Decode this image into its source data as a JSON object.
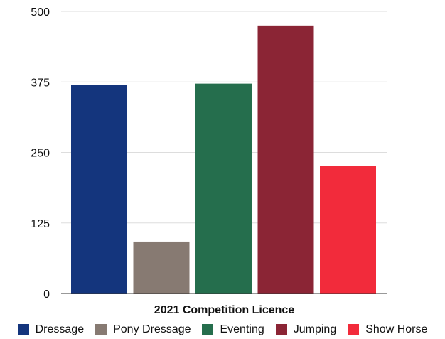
{
  "chart_data": {
    "type": "bar",
    "title": "",
    "xlabel": "2021 Competition Licence",
    "ylabel": "",
    "ylim": [
      0,
      500
    ],
    "yticks": [
      0,
      125,
      250,
      375,
      500
    ],
    "grid": true,
    "legend_position": "bottom",
    "categories": [
      "2021 Competition Licence"
    ],
    "series": [
      {
        "name": "Dressage",
        "color": "#14357d",
        "values": [
          370
        ]
      },
      {
        "name": "Pony Dressage",
        "color": "#877a72",
        "values": [
          92
        ]
      },
      {
        "name": "Eventing",
        "color": "#256e4d",
        "values": [
          372
        ]
      },
      {
        "name": "Jumping",
        "color": "#8b2535",
        "values": [
          475
        ]
      },
      {
        "name": "Show Horse",
        "color": "#f22b3b",
        "values": [
          226
        ]
      }
    ]
  }
}
